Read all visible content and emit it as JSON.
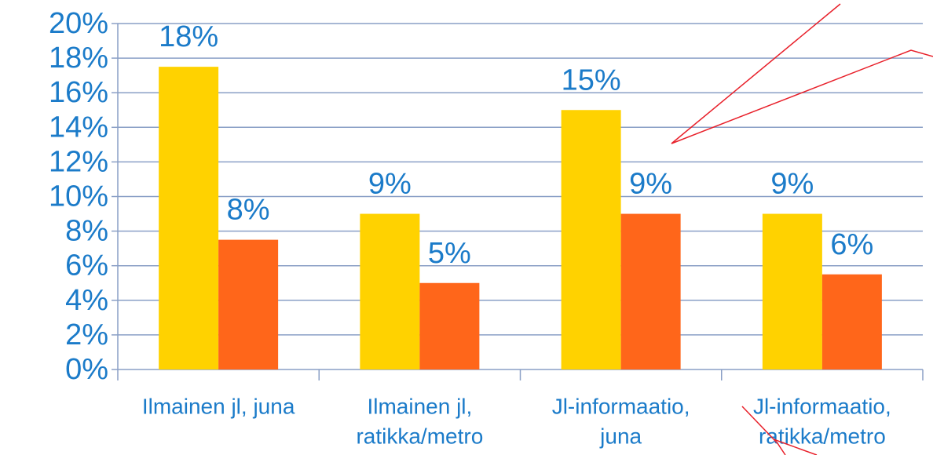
{
  "chart_data": {
    "type": "bar",
    "categories": [
      [
        "Ilmainen jl, juna"
      ],
      [
        "Ilmainen jl,",
        "ratikka/metro"
      ],
      [
        "Jl-informaatio,",
        "juna"
      ],
      [
        "Jl-informaatio,",
        "ratikka/metro"
      ]
    ],
    "series": [
      {
        "color": "#ffd200",
        "values": [
          17.5,
          9,
          15,
          9
        ],
        "value_labels": [
          "18%",
          "9%",
          "15%",
          "9%"
        ]
      },
      {
        "color": "#ff661a",
        "values": [
          7.5,
          5,
          9,
          5.5
        ],
        "value_labels": [
          "8%",
          "5%",
          "9%",
          "6%"
        ]
      }
    ],
    "ylim": [
      0,
      20
    ],
    "yticks": [
      {
        "value": 0,
        "label": "0%"
      },
      {
        "value": 2,
        "label": "2%"
      },
      {
        "value": 4,
        "label": "4%"
      },
      {
        "value": 6,
        "label": "6%"
      },
      {
        "value": 8,
        "label": "8%"
      },
      {
        "value": 10,
        "label": "10%"
      },
      {
        "value": 12,
        "label": "12%"
      },
      {
        "value": 14,
        "label": "14%"
      },
      {
        "value": 16,
        "label": "16%"
      },
      {
        "value": 18,
        "label": "18%"
      },
      {
        "value": 20,
        "label": "20%"
      }
    ],
    "grid": true
  }
}
